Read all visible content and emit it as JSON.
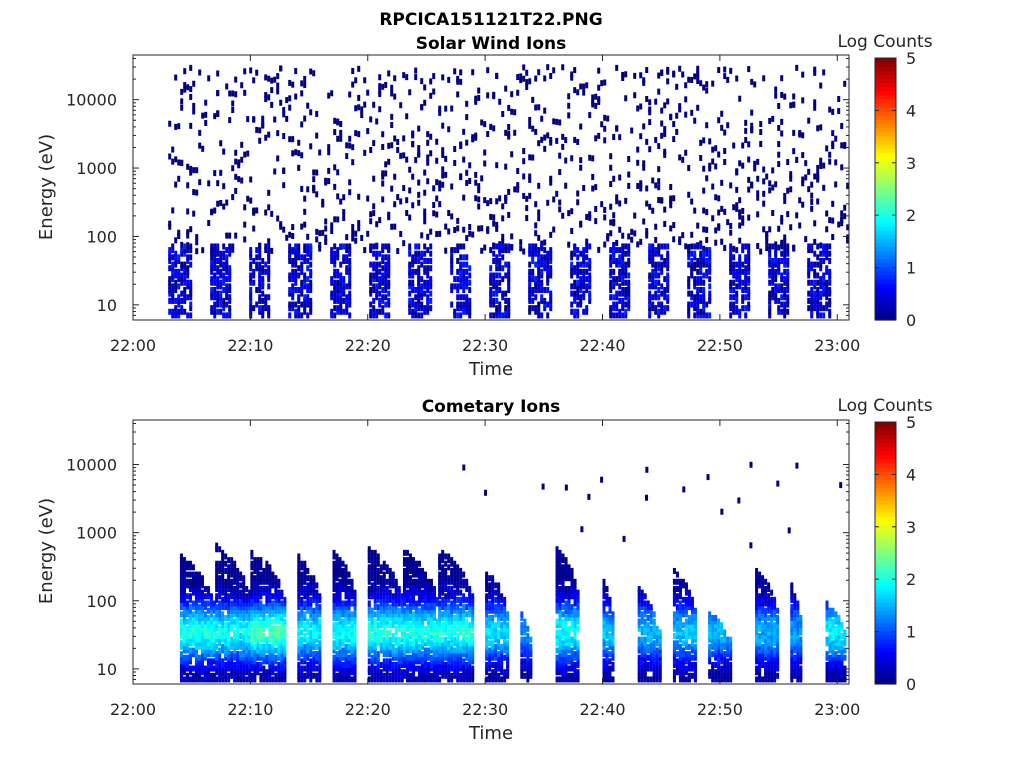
{
  "figure": {
    "title": "RPCICA151121T22.PNG"
  },
  "chart_data": [
    {
      "type": "heatmap",
      "title": "Solar Wind Ions",
      "xlabel": "Time",
      "ylabel": "Energy (eV)",
      "x_ticks": [
        "22:00",
        "22:10",
        "22:20",
        "22:30",
        "22:40",
        "22:50",
        "23:00"
      ],
      "x_range": [
        "22:00",
        "23:01"
      ],
      "y_scale": "log",
      "y_ticks": [
        "10",
        "100",
        "1000",
        "10000"
      ],
      "y_range": [
        6,
        45000
      ],
      "colorbar": {
        "label": "Log Counts",
        "range": [
          0,
          5
        ],
        "ticks": [
          "0",
          "1",
          "2",
          "3",
          "4",
          "5"
        ],
        "colormap": "jet"
      },
      "data_start": "22:03",
      "data_end": "23:01",
      "typical_low_energy_band_eV": [
        10,
        60
      ],
      "typical_low_energy_log_counts": [
        0,
        0.8
      ],
      "high_energy_scatter_log_counts": 0,
      "high_energy_scatter_range_eV": [
        60,
        30000
      ]
    },
    {
      "type": "heatmap",
      "title": "Cometary Ions",
      "xlabel": "Time",
      "ylabel": "Energy (eV)",
      "x_ticks": [
        "22:00",
        "22:10",
        "22:20",
        "22:30",
        "22:40",
        "22:50",
        "23:00"
      ],
      "x_range": [
        "22:00",
        "23:01"
      ],
      "y_scale": "log",
      "y_ticks": [
        "10",
        "100",
        "1000",
        "10000"
      ],
      "y_range": [
        6,
        45000
      ],
      "colorbar": {
        "label": "Log Counts",
        "range": [
          0,
          5
        ],
        "ticks": [
          "0",
          "1",
          "2",
          "3",
          "4",
          "5"
        ],
        "colormap": "jet"
      },
      "data_start": "22:03",
      "data_end": "23:01",
      "bursts": [
        {
          "start": "22:04",
          "end": "22:06",
          "max_energy_eV": 450,
          "peak_log_counts": 2.0
        },
        {
          "start": "22:07",
          "end": "22:09",
          "max_energy_eV": 650,
          "peak_log_counts": 1.9
        },
        {
          "start": "22:10",
          "end": "22:12",
          "max_energy_eV": 550,
          "peak_log_counts": 2.2
        },
        {
          "start": "22:14",
          "end": "22:15",
          "max_energy_eV": 500,
          "peak_log_counts": 1.8
        },
        {
          "start": "22:17",
          "end": "22:18",
          "max_energy_eV": 550,
          "peak_log_counts": 1.9
        },
        {
          "start": "22:20",
          "end": "22:22",
          "max_energy_eV": 600,
          "peak_log_counts": 2.0
        },
        {
          "start": "22:23",
          "end": "22:25",
          "max_energy_eV": 550,
          "peak_log_counts": 2.0
        },
        {
          "start": "22:26",
          "end": "22:28",
          "max_energy_eV": 600,
          "peak_log_counts": 2.0
        },
        {
          "start": "22:30",
          "end": "22:31",
          "max_energy_eV": 300,
          "peak_log_counts": 1.7
        },
        {
          "start": "22:33",
          "end": "22:33",
          "max_energy_eV": 70,
          "peak_log_counts": 1.3
        },
        {
          "start": "22:36",
          "end": "22:37",
          "max_energy_eV": 600,
          "peak_log_counts": 1.9
        },
        {
          "start": "22:40",
          "end": "22:40",
          "max_energy_eV": 200,
          "peak_log_counts": 1.6
        },
        {
          "start": "22:43",
          "end": "22:44",
          "max_energy_eV": 150,
          "peak_log_counts": 1.5
        },
        {
          "start": "22:46",
          "end": "22:47",
          "max_energy_eV": 300,
          "peak_log_counts": 1.6
        },
        {
          "start": "22:49",
          "end": "22:50",
          "max_energy_eV": 80,
          "peak_log_counts": 1.5
        },
        {
          "start": "22:53",
          "end": "22:54",
          "max_energy_eV": 300,
          "peak_log_counts": 1.5
        },
        {
          "start": "22:56",
          "end": "22:56",
          "max_energy_eV": 180,
          "peak_log_counts": 1.4
        },
        {
          "start": "22:59",
          "end": "23:00",
          "max_energy_eV": 100,
          "peak_log_counts": 1.8
        }
      ]
    }
  ]
}
